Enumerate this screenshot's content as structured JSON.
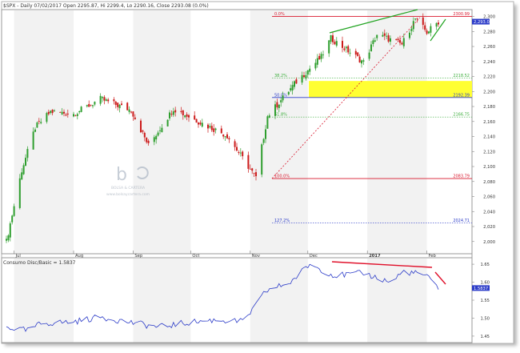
{
  "header": {
    "title": "$SPX - Daily 07/02/2017 Open 2295.87, Hi 2299.4, Lo 2290.16, Close 2293.08 (0.0%)"
  },
  "watermark": {
    "line1": "BOLSA & CARTERA",
    "line2": "www.bolsaycartera.com"
  },
  "colors": {
    "up_candle": "#2e9e2e",
    "down_candle": "#cc1a1a",
    "fib_line": "#d9182e",
    "fib_zone": "#ffff33",
    "indicator_line": "#2b3bc8",
    "trend_green": "#1fa31f",
    "trend_red": "#e0102a",
    "price_tag": "#2b3bc8"
  },
  "chart_data": [
    {
      "type": "candlestick",
      "title": "$SPX - Daily 07/02/2017 Open 2295.87, Hi 2299.4, Lo 2290.16, Close 2293.08 (0.0%)",
      "x_labels": [
        "Jul",
        "Aug",
        "Sep",
        "Oct",
        "Nov",
        "Dec",
        "2017",
        "Feb"
      ],
      "y_ticks": [
        2000,
        2020,
        2040,
        2060,
        2080,
        2100,
        2120,
        2140,
        2160,
        2180,
        2200,
        2220,
        2240,
        2260,
        2280,
        2300
      ],
      "ylim": [
        1988,
        2307
      ],
      "last_price": "2,293.08",
      "fibonacci_levels": [
        {
          "label": "0.0%",
          "price": 2300,
          "price_label": "2300.99"
        },
        {
          "label": "38.2%",
          "price": 2218,
          "price_label": "2218.52"
        },
        {
          "label": "50.0%",
          "price": 2192,
          "price_label": "2192.39"
        },
        {
          "label": "61.8%",
          "price": 2166,
          "price_label": "2166.75"
        },
        {
          "label": "100.0%",
          "price": 2084,
          "price_label": "2083.79"
        },
        {
          "label": "127.2%",
          "price": 2025,
          "price_label": "2024.71"
        }
      ],
      "highlight_zone": [
        2192,
        2214
      ],
      "anchors": [
        {
          "date": "2016-06-27",
          "close": 2000
        },
        {
          "date": "2016-07-05",
          "close": 2095
        },
        {
          "date": "2016-07-12",
          "close": 2152
        },
        {
          "date": "2016-07-20",
          "close": 2173
        },
        {
          "date": "2016-08-01",
          "close": 2170
        },
        {
          "date": "2016-08-15",
          "close": 2190
        },
        {
          "date": "2016-08-31",
          "close": 2175
        },
        {
          "date": "2016-09-09",
          "close": 2128
        },
        {
          "date": "2016-09-22",
          "close": 2177
        },
        {
          "date": "2016-10-05",
          "close": 2160
        },
        {
          "date": "2016-10-20",
          "close": 2141
        },
        {
          "date": "2016-11-04",
          "close": 2085
        },
        {
          "date": "2016-11-10",
          "close": 2167
        },
        {
          "date": "2016-11-25",
          "close": 2213
        },
        {
          "date": "2016-12-08",
          "close": 2246
        },
        {
          "date": "2016-12-13",
          "close": 2271
        },
        {
          "date": "2016-12-30",
          "close": 2239
        },
        {
          "date": "2017-01-06",
          "close": 2276
        },
        {
          "date": "2017-01-19",
          "close": 2263
        },
        {
          "date": "2017-01-26",
          "close": 2297
        },
        {
          "date": "2017-02-01",
          "close": 2279
        },
        {
          "date": "2017-02-07",
          "close": 2293
        }
      ]
    },
    {
      "type": "line",
      "title": "Consumo Disc/Basic = 1.5837",
      "y_ticks": [
        1.45,
        1.5,
        1.55,
        1.6,
        1.65
      ],
      "ylim": [
        1.432,
        1.668
      ],
      "last_value": "1.5837",
      "anchors": [
        {
          "date": "2016-06-27",
          "value": 1.475
        },
        {
          "date": "2016-07-08",
          "value": 1.465
        },
        {
          "date": "2016-07-15",
          "value": 1.485
        },
        {
          "date": "2016-08-01",
          "value": 1.49
        },
        {
          "date": "2016-08-15",
          "value": 1.503
        },
        {
          "date": "2016-08-31",
          "value": 1.488
        },
        {
          "date": "2016-09-14",
          "value": 1.475
        },
        {
          "date": "2016-09-30",
          "value": 1.488
        },
        {
          "date": "2016-10-14",
          "value": 1.495
        },
        {
          "date": "2016-10-28",
          "value": 1.49
        },
        {
          "date": "2016-11-04",
          "value": 1.535
        },
        {
          "date": "2016-11-09",
          "value": 1.575
        },
        {
          "date": "2016-11-22",
          "value": 1.6
        },
        {
          "date": "2016-12-02",
          "value": 1.65
        },
        {
          "date": "2016-12-15",
          "value": 1.618
        },
        {
          "date": "2016-12-30",
          "value": 1.625
        },
        {
          "date": "2017-01-13",
          "value": 1.6
        },
        {
          "date": "2017-01-20",
          "value": 1.63
        },
        {
          "date": "2017-01-31",
          "value": 1.62
        },
        {
          "date": "2017-02-07",
          "value": 1.5837
        }
      ]
    }
  ]
}
